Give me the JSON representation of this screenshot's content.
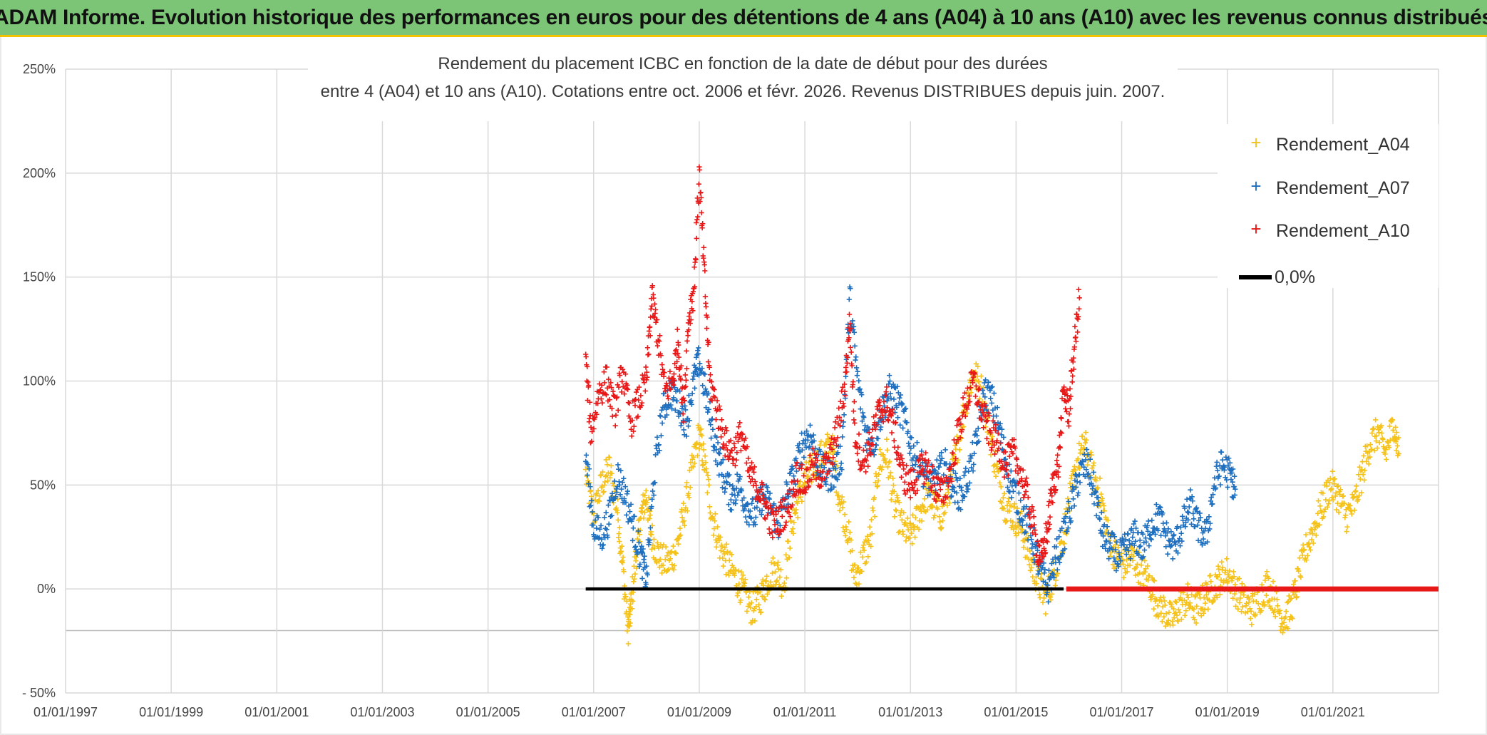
{
  "header": {
    "banner_title": "ADAM Informe. Evolution historique des performances en euros pour des détentions de 4 ans (A04) à 10 ans (A10) avec les revenus connus distribués"
  },
  "colors": {
    "banner": "#7cc576",
    "banner_border": "#f2c200",
    "a04": "#f5c21b",
    "a07": "#1f6fbf",
    "a10": "#e81818",
    "zero": "#000000",
    "grid": "#d9d9d9"
  },
  "chart_data": {
    "type": "scatter",
    "title_line1": "Rendement du placement ICBC en fonction de la date de début pour des durées",
    "title_line2": "entre 4 (A04) et 10 ans (A10). Cotations entre oct. 2006 et févr. 2026. Revenus DISTRIBUES depuis juin. 2007.",
    "xlabel": "",
    "ylabel": "",
    "x_range": [
      1997.0,
      2023.0
    ],
    "ylim": [
      -50,
      250
    ],
    "y_ticks": [
      -50,
      0,
      50,
      100,
      150,
      200,
      250
    ],
    "y_tick_labels": [
      "- 50%",
      "0%",
      "50%",
      "100%",
      "150%",
      "200%",
      "250%"
    ],
    "x_ticks": [
      1997,
      1999,
      2001,
      2003,
      2005,
      2007,
      2009,
      2011,
      2013,
      2015,
      2017,
      2019,
      2021
    ],
    "x_tick_labels": [
      "01/01/1997",
      "01/01/1999",
      "01/01/2001",
      "01/01/2003",
      "01/01/2005",
      "01/01/2007",
      "01/01/2009",
      "01/01/2011",
      "01/01/2013",
      "01/01/2015",
      "01/01/2017",
      "01/01/2019",
      "01/01/2021"
    ],
    "extra_gridline_y": -20,
    "grid": true,
    "legend_position": "top-right",
    "series": [
      {
        "name": "Rendement_A04",
        "marker": "+",
        "x": [
          2006.85,
          2007.0,
          2007.15,
          2007.3,
          2007.45,
          2007.55,
          2007.65,
          2007.7,
          2007.8,
          2007.9,
          2008.0,
          2008.1,
          2008.25,
          2008.4,
          2008.55,
          2008.7,
          2008.85,
          2009.0,
          2009.1,
          2009.25,
          2009.4,
          2009.55,
          2009.7,
          2009.85,
          2010.0,
          2010.15,
          2010.3,
          2010.45,
          2010.6,
          2010.75,
          2010.9,
          2011.05,
          2011.2,
          2011.35,
          2011.5,
          2011.65,
          2011.8,
          2011.95,
          2012.1,
          2012.25,
          2012.4,
          2012.55,
          2012.7,
          2012.85,
          2013.0,
          2013.15,
          2013.3,
          2013.45,
          2013.6,
          2013.75,
          2013.9,
          2014.05,
          2014.2,
          2014.35,
          2014.5,
          2014.65,
          2014.8,
          2014.95,
          2015.1,
          2015.25,
          2015.4,
          2015.55,
          2015.7,
          2015.85,
          2016.0,
          2016.15,
          2016.3,
          2016.45,
          2016.6,
          2016.75,
          2016.9,
          2017.05,
          2017.2,
          2017.35,
          2017.5,
          2017.65,
          2017.8,
          2017.95,
          2018.1,
          2018.25,
          2018.4,
          2018.55,
          2018.7,
          2018.85,
          2019.0,
          2019.15,
          2019.3,
          2019.45,
          2019.6,
          2019.75,
          2019.9,
          2020.05,
          2020.2,
          2020.35,
          2020.5,
          2020.65,
          2020.8,
          2020.95,
          2021.1,
          2021.25,
          2021.4,
          2021.55,
          2021.7,
          2021.85,
          2022.0,
          2022.15,
          2022.25
        ],
        "y": [
          55,
          35,
          50,
          58,
          38,
          12,
          -20,
          -10,
          15,
          35,
          45,
          25,
          15,
          12,
          18,
          35,
          55,
          75,
          60,
          35,
          20,
          12,
          5,
          -2,
          -10,
          -5,
          5,
          10,
          2,
          30,
          45,
          55,
          60,
          65,
          70,
          45,
          30,
          5,
          15,
          25,
          60,
          65,
          40,
          30,
          25,
          35,
          45,
          40,
          35,
          50,
          70,
          90,
          105,
          95,
          75,
          55,
          40,
          35,
          30,
          15,
          5,
          -5,
          5,
          20,
          40,
          60,
          70,
          55,
          45,
          25,
          15,
          12,
          15,
          10,
          5,
          -5,
          -10,
          -15,
          -8,
          -5,
          -10,
          -5,
          0,
          5,
          8,
          0,
          -5,
          -10,
          -5,
          2,
          -5,
          -15,
          -10,
          5,
          20,
          30,
          40,
          50,
          45,
          35,
          40,
          55,
          70,
          75,
          65,
          80,
          65
        ]
      },
      {
        "name": "Rendement_A07",
        "marker": "+",
        "x": [
          2006.85,
          2007.0,
          2007.15,
          2007.3,
          2007.45,
          2007.6,
          2007.75,
          2007.9,
          2008.0,
          2008.15,
          2008.3,
          2008.45,
          2008.6,
          2008.75,
          2008.9,
          2009.0,
          2009.15,
          2009.3,
          2009.45,
          2009.6,
          2009.75,
          2009.9,
          2010.05,
          2010.2,
          2010.35,
          2010.5,
          2010.65,
          2010.8,
          2010.95,
          2011.1,
          2011.25,
          2011.4,
          2011.55,
          2011.7,
          2011.85,
          2012.0,
          2012.15,
          2012.3,
          2012.45,
          2012.6,
          2012.75,
          2012.9,
          2013.05,
          2013.2,
          2013.35,
          2013.5,
          2013.65,
          2013.8,
          2013.95,
          2014.1,
          2014.25,
          2014.4,
          2014.55,
          2014.7,
          2014.85,
          2015.0,
          2015.15,
          2015.3,
          2015.45,
          2015.6,
          2015.75,
          2015.9,
          2016.05,
          2016.2,
          2016.35,
          2016.5,
          2016.65,
          2016.8,
          2016.95,
          2017.1,
          2017.25,
          2017.4,
          2017.55,
          2017.7,
          2017.85,
          2018.0,
          2018.15,
          2018.3,
          2018.45,
          2018.6,
          2018.75,
          2018.9,
          2019.05,
          2019.15
        ],
        "y": [
          65,
          30,
          25,
          35,
          55,
          45,
          30,
          15,
          5,
          55,
          85,
          95,
          90,
          80,
          100,
          110,
          90,
          70,
          55,
          45,
          50,
          40,
          35,
          45,
          40,
          30,
          45,
          55,
          70,
          75,
          60,
          55,
          55,
          65,
          140,
          100,
          75,
          70,
          85,
          95,
          90,
          80,
          65,
          60,
          50,
          55,
          60,
          50,
          45,
          55,
          70,
          95,
          90,
          75,
          55,
          45,
          35,
          25,
          10,
          0,
          15,
          25,
          40,
          55,
          60,
          45,
          25,
          20,
          15,
          20,
          25,
          20,
          30,
          35,
          25,
          20,
          30,
          40,
          30,
          25,
          50,
          60,
          55,
          48
        ]
      },
      {
        "name": "Rendement_A10",
        "marker": "+",
        "x": [
          2006.85,
          2006.95,
          2007.1,
          2007.25,
          2007.4,
          2007.55,
          2007.7,
          2007.85,
          2008.0,
          2008.1,
          2008.2,
          2008.35,
          2008.5,
          2008.6,
          2008.7,
          2008.8,
          2008.9,
          2009.0,
          2009.1,
          2009.2,
          2009.35,
          2009.5,
          2009.65,
          2009.8,
          2009.95,
          2010.1,
          2010.25,
          2010.4,
          2010.55,
          2010.7,
          2010.85,
          2011.0,
          2011.15,
          2011.3,
          2011.45,
          2011.6,
          2011.75,
          2011.85,
          2011.95,
          2012.1,
          2012.25,
          2012.4,
          2012.55,
          2012.7,
          2012.85,
          2013.0,
          2013.15,
          2013.3,
          2013.45,
          2013.6,
          2013.75,
          2013.9,
          2014.05,
          2014.2,
          2014.35,
          2014.5,
          2014.65,
          2014.8,
          2014.95,
          2015.1,
          2015.25,
          2015.4,
          2015.5,
          2015.6,
          2015.7,
          2015.8,
          2015.9,
          2016.0,
          2016.1,
          2016.2
        ],
        "y": [
          110,
          75,
          95,
          100,
          85,
          105,
          80,
          90,
          100,
          140,
          125,
          95,
          100,
          120,
          85,
          130,
          145,
          200,
          150,
          100,
          85,
          70,
          65,
          75,
          55,
          50,
          40,
          30,
          35,
          40,
          55,
          50,
          60,
          55,
          60,
          75,
          95,
          130,
          75,
          60,
          70,
          85,
          90,
          75,
          55,
          50,
          55,
          60,
          50,
          45,
          55,
          75,
          90,
          100,
          85,
          75,
          70,
          60,
          65,
          55,
          40,
          20,
          15,
          30,
          50,
          60,
          95,
          85,
          115,
          140
        ]
      },
      {
        "name": "0,0%",
        "type": "line",
        "x": [
          2006.85,
          2015.9
        ],
        "y": [
          0,
          0
        ]
      }
    ],
    "a10_zero_segment": {
      "x": [
        2015.95,
        2023.0
      ],
      "y": [
        0,
        0
      ]
    }
  }
}
